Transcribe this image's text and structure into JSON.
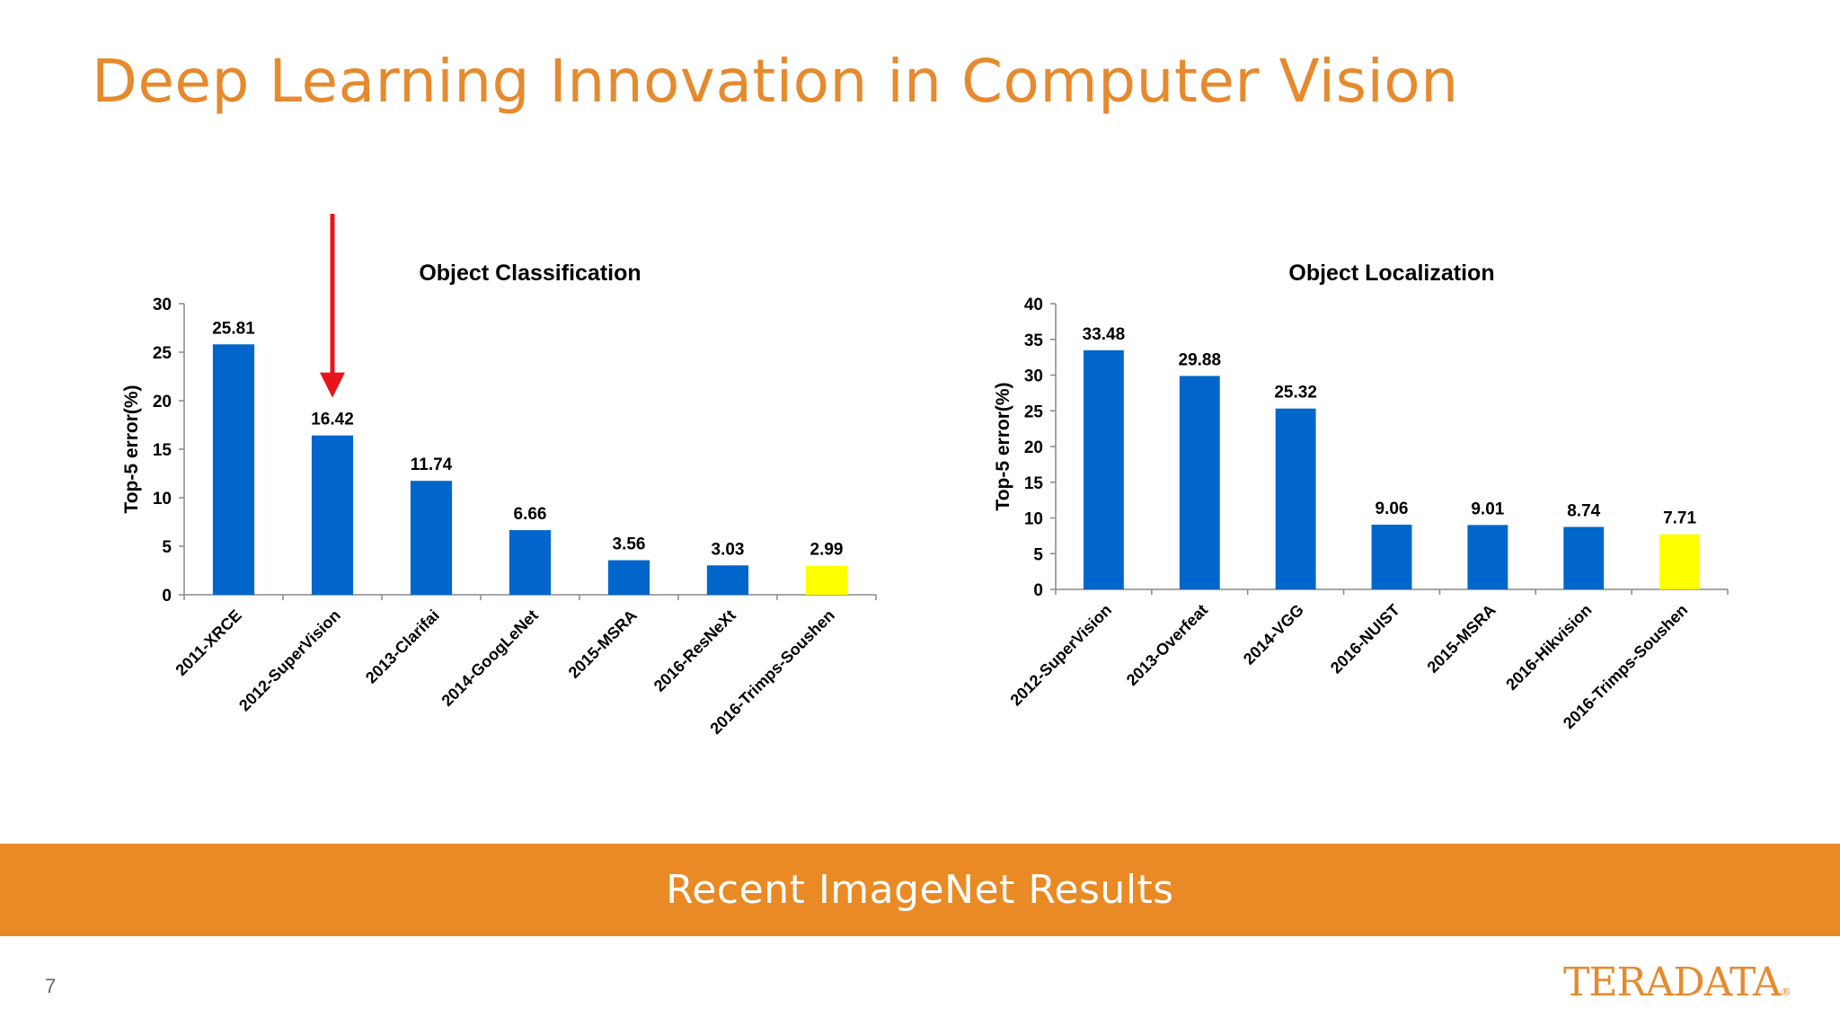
{
  "slide": {
    "title": "Deep Learning Innovation in Computer Vision",
    "banner": "Recent ImageNet Results",
    "page_number": "7",
    "logo_text": "TERADATA"
  },
  "colors": {
    "title": "#e68a2e",
    "banner": "#e98a24",
    "bar_default": "#0066cc",
    "bar_highlight": "#ffff00",
    "arrow": "#e8141b"
  },
  "chart_data": [
    {
      "type": "bar",
      "title": "Object Classification",
      "ylabel": "Top-5 error(%)",
      "xlabel": "",
      "ylim": [
        0,
        30
      ],
      "yticks": [
        0,
        5,
        10,
        15,
        20,
        25,
        30
      ],
      "categories": [
        "2011-XRCE",
        "2012-SuperVision",
        "2013-Clarifai",
        "2014-GoogLeNet",
        "2015-MSRA",
        "2016-ResNeXt",
        "2016-Trimps-Soushen"
      ],
      "values": [
        25.81,
        16.42,
        11.74,
        6.66,
        3.56,
        3.03,
        2.99
      ],
      "value_labels": [
        "25.81",
        "16.42",
        "11.74",
        "6.66",
        "3.56",
        "3.03",
        "2.99"
      ],
      "highlight_index": 6,
      "arrow_index": 1
    },
    {
      "type": "bar",
      "title": "Object Localization",
      "ylabel": "Top-5 error(%)",
      "xlabel": "",
      "ylim": [
        0,
        40
      ],
      "yticks": [
        0,
        5,
        10,
        15,
        20,
        25,
        30,
        35,
        40
      ],
      "categories": [
        "2012-SuperVision",
        "2013-Overfeat",
        "2014-VGG",
        "2016-NUIST",
        "2015-MSRA",
        "2016-Hikvision",
        "2016-Trimps-Soushen"
      ],
      "values": [
        33.48,
        29.88,
        25.32,
        9.06,
        9.01,
        8.74,
        7.71
      ],
      "value_labels": [
        "33.48",
        "29.88",
        "25.32",
        "9.06",
        "9.01",
        "8.74",
        "7.71"
      ],
      "highlight_index": 6,
      "arrow_index": null
    }
  ]
}
